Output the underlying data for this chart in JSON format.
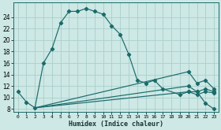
{
  "xlabel": "Humidex (Indice chaleur)",
  "bg_color": "#cde8e5",
  "grid_color": "#aacfcc",
  "line_color": "#1a6b6b",
  "xlim": [
    -0.5,
    23.5
  ],
  "ylim": [
    7.5,
    26.5
  ],
  "xticks": [
    0,
    1,
    2,
    3,
    4,
    5,
    6,
    7,
    8,
    9,
    10,
    11,
    12,
    13,
    14,
    15,
    16,
    17,
    18,
    19,
    20,
    21,
    22,
    23
  ],
  "yticks": [
    8,
    10,
    12,
    14,
    16,
    18,
    20,
    22,
    24
  ],
  "series": [
    {
      "x": [
        0,
        1,
        2,
        3,
        4,
        5,
        6,
        7,
        8,
        9,
        10,
        11,
        12,
        13,
        14,
        15,
        16,
        17,
        19,
        20,
        21,
        22,
        23
      ],
      "y": [
        11,
        9.2,
        8.2,
        16,
        18.5,
        23,
        25,
        25,
        25.5,
        25,
        24.5,
        22.5,
        21,
        17.5,
        13,
        12.5,
        13,
        11.5,
        10.5,
        11,
        11,
        9,
        8
      ]
    },
    {
      "x": [
        2,
        20,
        21,
        22,
        23
      ],
      "y": [
        8.2,
        14.5,
        12.5,
        13,
        11.5
      ]
    },
    {
      "x": [
        2,
        20,
        21,
        22,
        23
      ],
      "y": [
        8.2,
        12,
        11,
        11.5,
        11
      ]
    },
    {
      "x": [
        2,
        20,
        21,
        22,
        23
      ],
      "y": [
        8.2,
        11,
        10.5,
        11,
        10.8
      ]
    }
  ]
}
